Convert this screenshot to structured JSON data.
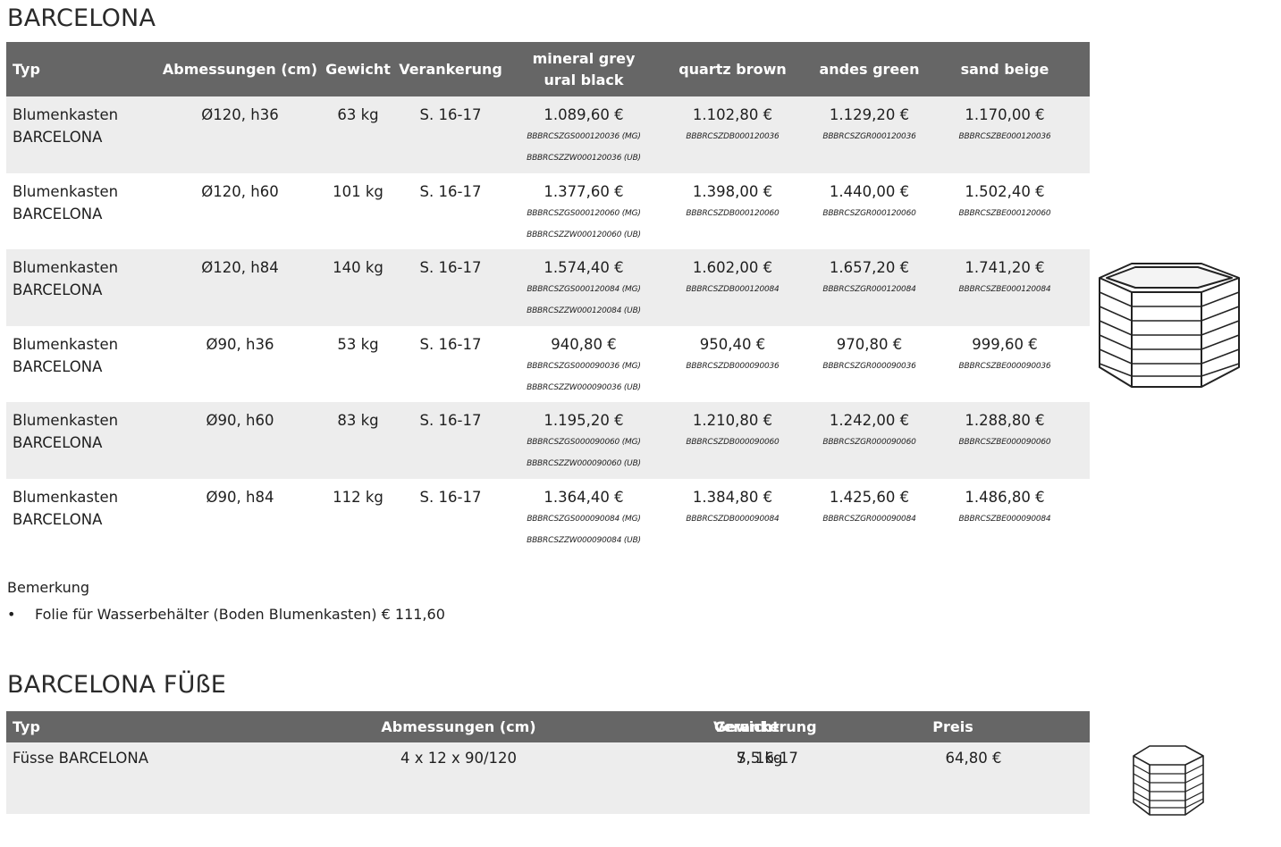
{
  "section1": {
    "title": "BARCELONA",
    "headers": {
      "typ": "Typ",
      "abmessungen": "Abmessungen (cm)",
      "gewicht": "Gewicht",
      "verankerung": "Verankerung",
      "mineral_line1": "mineral grey",
      "mineral_line2": "ural black",
      "quartz": "quartz brown",
      "andes": "andes green",
      "sand": "sand beige"
    },
    "rows": [
      {
        "typ1": "Blumenkasten",
        "typ2": "BARCELONA",
        "abm": "Ø120, h36",
        "gewicht": "63 kg",
        "verankerung": "S. 16-17",
        "mineral": "1.089,60 €",
        "mineral_code1": "BBBRCSZGS000120036 (MG)",
        "mineral_code2": "BBBRCSZZW000120036 (UB)",
        "quartz": "1.102,80 €",
        "quartz_code": "BBBRCSZDB000120036",
        "andes": "1.129,20 €",
        "andes_code": "BBBRCSZGR000120036",
        "sand": "1.170,00 €",
        "sand_code": "BBBRCSZBE000120036"
      },
      {
        "typ1": "Blumenkasten",
        "typ2": "BARCELONA",
        "abm": "Ø120, h60",
        "gewicht": "101 kg",
        "verankerung": "S. 16-17",
        "mineral": "1.377,60 €",
        "mineral_code1": "BBBRCSZGS000120060 (MG)",
        "mineral_code2": "BBBRCSZZW000120060 (UB)",
        "quartz": "1.398,00 €",
        "quartz_code": "BBBRCSZDB000120060",
        "andes": "1.440,00 €",
        "andes_code": "BBBRCSZGR000120060",
        "sand": "1.502,40 €",
        "sand_code": "BBBRCSZBE000120060"
      },
      {
        "typ1": "Blumenkasten",
        "typ2": "BARCELONA",
        "abm": "Ø120, h84",
        "gewicht": "140 kg",
        "verankerung": "S. 16-17",
        "mineral": "1.574,40 €",
        "mineral_code1": "BBBRCSZGS000120084 (MG)",
        "mineral_code2": "BBBRCSZZW000120084 (UB)",
        "quartz": "1.602,00 €",
        "quartz_code": "BBBRCSZDB000120084",
        "andes": "1.657,20 €",
        "andes_code": "BBBRCSZGR000120084",
        "sand": "1.741,20 €",
        "sand_code": "BBBRCSZBE000120084"
      },
      {
        "typ1": "Blumenkasten",
        "typ2": "BARCELONA",
        "abm": "Ø90, h36",
        "gewicht": "53 kg",
        "verankerung": "S. 16-17",
        "mineral": "940,80 €",
        "mineral_code1": "BBBRCSZGS000090036 (MG)",
        "mineral_code2": "BBBRCSZZW000090036 (UB)",
        "quartz": "950,40 €",
        "quartz_code": "BBBRCSZDB000090036",
        "andes": "970,80 €",
        "andes_code": "BBBRCSZGR000090036",
        "sand": "999,60 €",
        "sand_code": "BBBRCSZBE000090036"
      },
      {
        "typ1": "Blumenkasten",
        "typ2": "BARCELONA",
        "abm": "Ø90, h60",
        "gewicht": "83 kg",
        "verankerung": "S. 16-17",
        "mineral": "1.195,20 €",
        "mineral_code1": "BBBRCSZGS000090060 (MG)",
        "mineral_code2": "BBBRCSZZW000090060 (UB)",
        "quartz": "1.210,80 €",
        "quartz_code": "BBBRCSZDB000090060",
        "andes": "1.242,00 €",
        "andes_code": "BBBRCSZGR000090060",
        "sand": "1.288,80 €",
        "sand_code": "BBBRCSZBE000090060"
      },
      {
        "typ1": "Blumenkasten",
        "typ2": "BARCELONA",
        "abm": "Ø90, h84",
        "gewicht": "112 kg",
        "verankerung": "S. 16-17",
        "mineral": "1.364,40 €",
        "mineral_code1": "BBBRCSZGS000090084 (MG)",
        "mineral_code2": "BBBRCSZZW000090084 (UB)",
        "quartz": "1.384,80 €",
        "quartz_code": "BBBRCSZDB000090084",
        "andes": "1.425,60 €",
        "andes_code": "BBBRCSZGR000090084",
        "sand": "1.486,80 €",
        "sand_code": "BBBRCSZBE000090084"
      }
    ]
  },
  "remark": {
    "title": "Bemerkung",
    "bullet": "•",
    "item": "Folie für Wasserbehälter (Boden Blumenkasten) € 111,60"
  },
  "section2": {
    "title": "BARCELONA FÜßE",
    "headers": {
      "typ": "Typ",
      "abmessungen": "Abmessungen (cm)",
      "gewicht": "Gewicht",
      "verankerung": "Verankerung",
      "preis": "Preis"
    },
    "row": {
      "typ": "Füsse BARCELONA",
      "abm": "4 x 12 x 90/120",
      "gewicht": "7,5 kg",
      "verankerung": "S. 16-17",
      "preis": "64,80 €"
    }
  },
  "images": {
    "planter_large": "hexagonal-planter-drawing",
    "planter_small": "hexagonal-planter-drawing"
  }
}
